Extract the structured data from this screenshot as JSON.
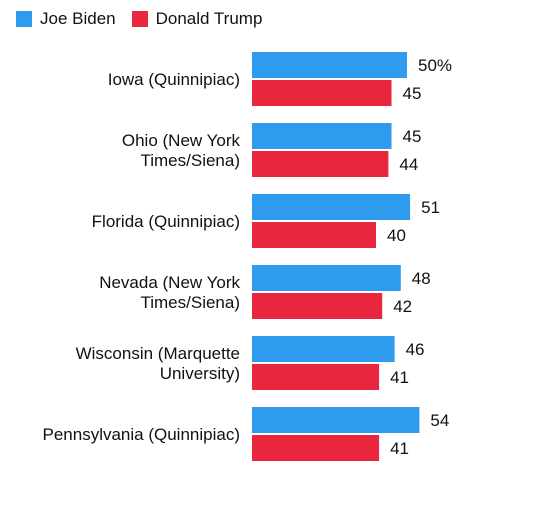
{
  "chart_data": {
    "type": "bar",
    "orientation": "horizontal",
    "categories": [
      [
        "Iowa (Quinnipiac)"
      ],
      [
        "Ohio (New York",
        "Times/Siena)"
      ],
      [
        "Florida (Quinnipiac)"
      ],
      [
        "Nevada (New York",
        "Times/Siena)"
      ],
      [
        "Wisconsin (Marquette",
        "University)"
      ],
      [
        "Pennsylvania (Quinnipiac)"
      ]
    ],
    "series": [
      {
        "name": "Joe Biden",
        "color": "#2e9bef",
        "values": [
          50,
          45,
          51,
          48,
          46,
          54
        ],
        "labels": [
          "50%",
          "45",
          "51",
          "48",
          "46",
          "54"
        ]
      },
      {
        "name": "Donald Trump",
        "color": "#e8273f",
        "values": [
          45,
          44,
          40,
          42,
          41,
          41
        ],
        "labels": [
          "45",
          "44",
          "40",
          "42",
          "41",
          "41"
        ]
      }
    ],
    "xlim": [
      0,
      100
    ],
    "grid": false,
    "legend": "top-left"
  }
}
